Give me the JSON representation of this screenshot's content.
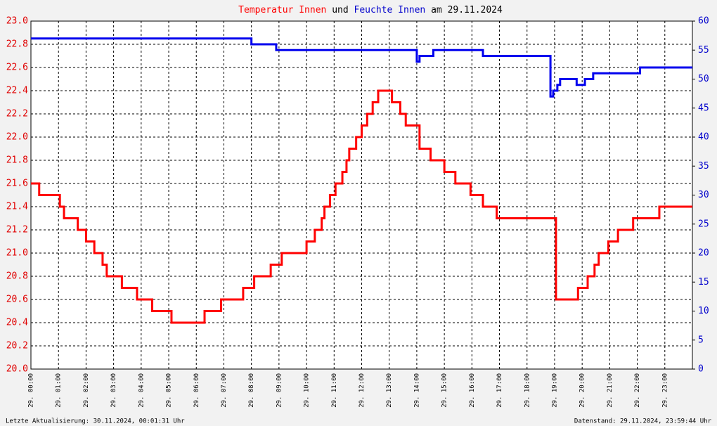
{
  "chart_data": {
    "type": "line",
    "step": true,
    "title_parts": [
      {
        "text": "Temperatur Innen",
        "color": "#ff0000"
      },
      {
        "text": "und",
        "color": "#000000"
      },
      {
        "text": "Feuchte Innen",
        "color": "#0000cc"
      },
      {
        "text": "am 29.11.2024",
        "color": "#000000"
      }
    ],
    "footer_left": "Letzte Aktualisierung: 30.11.2024, 00:01:31 Uhr",
    "footer_right": "Datenstand: 29.11.2024, 23:59:44 Uhr",
    "xlim": [
      0,
      24
    ],
    "xticks": [
      {
        "value": 0,
        "label": "29. 00:00"
      },
      {
        "value": 1,
        "label": "29. 01:00"
      },
      {
        "value": 2,
        "label": "29. 02:00"
      },
      {
        "value": 3,
        "label": "29. 03:00"
      },
      {
        "value": 4,
        "label": "29. 04:00"
      },
      {
        "value": 5,
        "label": "29. 05:00"
      },
      {
        "value": 6,
        "label": "29. 06:00"
      },
      {
        "value": 7,
        "label": "29. 07:00"
      },
      {
        "value": 8,
        "label": "29. 08:00"
      },
      {
        "value": 9,
        "label": "29. 09:00"
      },
      {
        "value": 10,
        "label": "29. 10:00"
      },
      {
        "value": 11,
        "label": "29. 11:00"
      },
      {
        "value": 12,
        "label": "29. 12:00"
      },
      {
        "value": 13,
        "label": "29. 13:00"
      },
      {
        "value": 14,
        "label": "29. 14:00"
      },
      {
        "value": 15,
        "label": "29. 15:00"
      },
      {
        "value": 16,
        "label": "29. 16:00"
      },
      {
        "value": 17,
        "label": "29. 17:00"
      },
      {
        "value": 18,
        "label": "29. 18:00"
      },
      {
        "value": 19,
        "label": "29. 19:00"
      },
      {
        "value": 20,
        "label": "29. 20:00"
      },
      {
        "value": 21,
        "label": "29. 21:00"
      },
      {
        "value": 22,
        "label": "29. 22:00"
      },
      {
        "value": 23,
        "label": "29. 23:00"
      }
    ],
    "ylim": [
      20.0,
      23.0
    ],
    "yticks": [
      {
        "value": 20,
        "label": "20.0"
      },
      20.2,
      20.4,
      20.6,
      20.8,
      {
        "value": 21,
        "label": "21.0"
      },
      21.2,
      21.4,
      21.6,
      21.8,
      {
        "value": 22,
        "label": "22.0"
      },
      22.2,
      22.4,
      22.6,
      22.8,
      {
        "value": 23,
        "label": "23.0"
      }
    ],
    "y2lim": [
      0,
      60
    ],
    "y2ticks": [
      0,
      5,
      10,
      15,
      20,
      25,
      30,
      35,
      40,
      45,
      50,
      55,
      60
    ],
    "grid": true,
    "series": [
      {
        "color": "#ff0000",
        "axis": "y",
        "x": [
          0,
          0.3,
          1.05,
          1.2,
          1.7,
          2.0,
          2.3,
          2.6,
          2.75,
          3.3,
          3.85,
          4.4,
          5.1,
          6.3,
          6.9,
          7.7,
          8.1,
          8.7,
          9.1,
          10.0,
          10.3,
          10.55,
          10.65,
          10.85,
          11.05,
          11.3,
          11.45,
          11.55,
          11.8,
          12.0,
          12.2,
          12.4,
          12.6,
          13.1,
          13.4,
          13.6,
          14.1,
          14.5,
          15.0,
          15.4,
          15.95,
          16.4,
          16.9,
          18.7,
          19.05,
          19.85,
          20.2,
          20.45,
          20.6,
          20.95,
          21.3,
          21.85,
          22.8,
          24
        ],
        "values": [
          21.6,
          21.5,
          21.4,
          21.3,
          21.2,
          21.1,
          21.0,
          20.9,
          20.8,
          20.7,
          20.6,
          20.5,
          20.4,
          20.5,
          20.6,
          20.7,
          20.8,
          20.9,
          21.0,
          21.1,
          21.2,
          21.3,
          21.4,
          21.5,
          21.6,
          21.7,
          21.8,
          21.9,
          22.0,
          22.1,
          22.2,
          22.3,
          22.4,
          22.3,
          22.2,
          22.1,
          21.9,
          21.8,
          21.7,
          21.6,
          21.5,
          21.4,
          21.3,
          21.3,
          20.6,
          20.7,
          20.8,
          20.9,
          21.0,
          21.1,
          21.2,
          21.3,
          21.4,
          21.4
        ]
      },
      {
        "color": "#0000ee",
        "axis": "y2",
        "x": [
          0,
          8.0,
          8.9,
          13.9,
          14.0,
          14.1,
          14.6,
          16.4,
          18.5,
          18.85,
          18.95,
          19.1,
          19.2,
          19.6,
          19.8,
          20.1,
          20.4,
          22.1,
          24
        ],
        "values": [
          57,
          56,
          55,
          55,
          53,
          54,
          55,
          54,
          54,
          47,
          48,
          49,
          50,
          50,
          49,
          50,
          51,
          52,
          52
        ]
      }
    ]
  }
}
